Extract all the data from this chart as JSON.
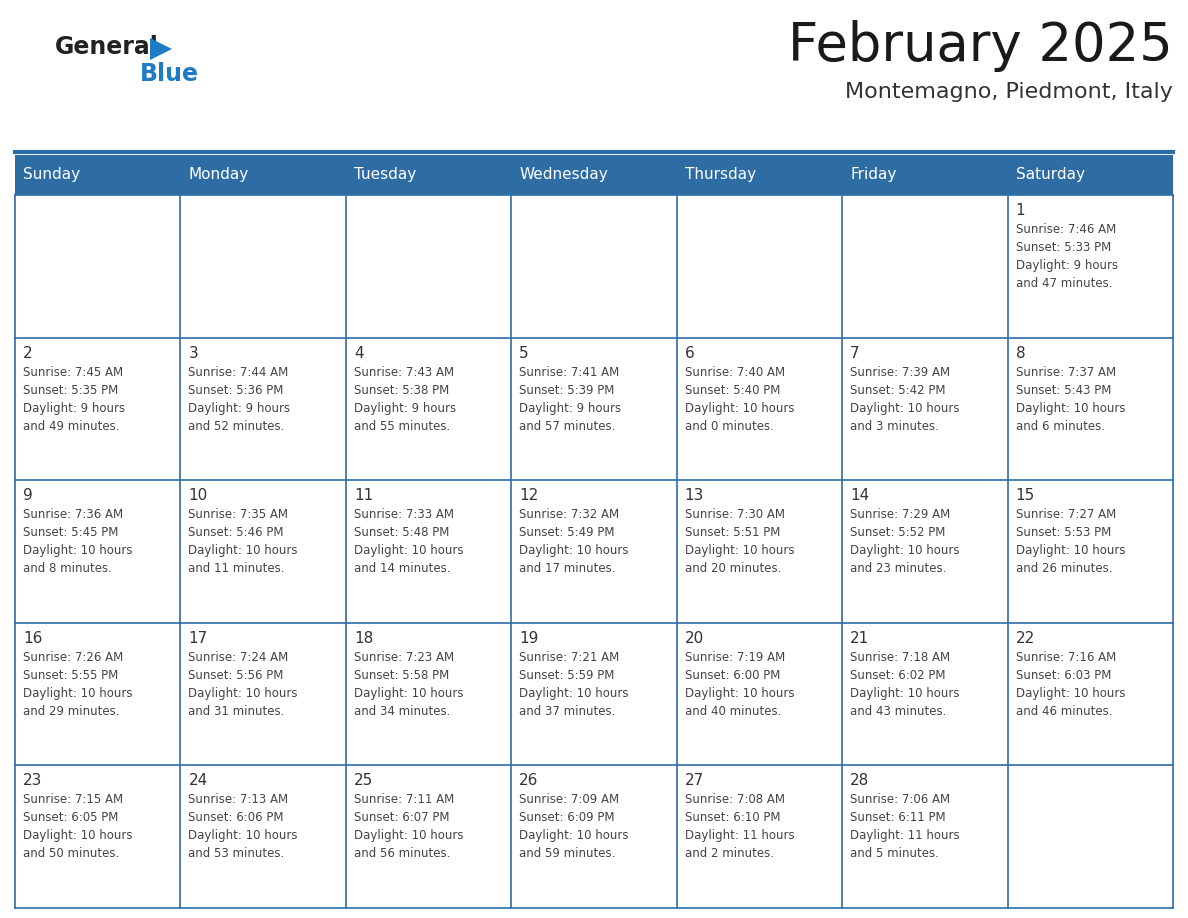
{
  "title": "February 2025",
  "subtitle": "Montemagno, Piedmont, Italy",
  "header_bg": "#2E6DA4",
  "header_text_color": "#FFFFFF",
  "cell_bg": "#FFFFFF",
  "first_row_bg": "#F2F2F2",
  "day_headers": [
    "Sunday",
    "Monday",
    "Tuesday",
    "Wednesday",
    "Thursday",
    "Friday",
    "Saturday"
  ],
  "logo_color1": "#222222",
  "logo_color2": "#1E7BC4",
  "logo_triangle_color": "#1E7BC4",
  "grid_line_color": "#2E6DA4",
  "date_color": "#333333",
  "text_color": "#444444",
  "calendar_data": {
    "1": {
      "sunrise": "7:46 AM",
      "sunset": "5:33 PM",
      "daylight_line1": "Daylight: 9 hours",
      "daylight_line2": "and 47 minutes."
    },
    "2": {
      "sunrise": "7:45 AM",
      "sunset": "5:35 PM",
      "daylight_line1": "Daylight: 9 hours",
      "daylight_line2": "and 49 minutes."
    },
    "3": {
      "sunrise": "7:44 AM",
      "sunset": "5:36 PM",
      "daylight_line1": "Daylight: 9 hours",
      "daylight_line2": "and 52 minutes."
    },
    "4": {
      "sunrise": "7:43 AM",
      "sunset": "5:38 PM",
      "daylight_line1": "Daylight: 9 hours",
      "daylight_line2": "and 55 minutes."
    },
    "5": {
      "sunrise": "7:41 AM",
      "sunset": "5:39 PM",
      "daylight_line1": "Daylight: 9 hours",
      "daylight_line2": "and 57 minutes."
    },
    "6": {
      "sunrise": "7:40 AM",
      "sunset": "5:40 PM",
      "daylight_line1": "Daylight: 10 hours",
      "daylight_line2": "and 0 minutes."
    },
    "7": {
      "sunrise": "7:39 AM",
      "sunset": "5:42 PM",
      "daylight_line1": "Daylight: 10 hours",
      "daylight_line2": "and 3 minutes."
    },
    "8": {
      "sunrise": "7:37 AM",
      "sunset": "5:43 PM",
      "daylight_line1": "Daylight: 10 hours",
      "daylight_line2": "and 6 minutes."
    },
    "9": {
      "sunrise": "7:36 AM",
      "sunset": "5:45 PM",
      "daylight_line1": "Daylight: 10 hours",
      "daylight_line2": "and 8 minutes."
    },
    "10": {
      "sunrise": "7:35 AM",
      "sunset": "5:46 PM",
      "daylight_line1": "Daylight: 10 hours",
      "daylight_line2": "and 11 minutes."
    },
    "11": {
      "sunrise": "7:33 AM",
      "sunset": "5:48 PM",
      "daylight_line1": "Daylight: 10 hours",
      "daylight_line2": "and 14 minutes."
    },
    "12": {
      "sunrise": "7:32 AM",
      "sunset": "5:49 PM",
      "daylight_line1": "Daylight: 10 hours",
      "daylight_line2": "and 17 minutes."
    },
    "13": {
      "sunrise": "7:30 AM",
      "sunset": "5:51 PM",
      "daylight_line1": "Daylight: 10 hours",
      "daylight_line2": "and 20 minutes."
    },
    "14": {
      "sunrise": "7:29 AM",
      "sunset": "5:52 PM",
      "daylight_line1": "Daylight: 10 hours",
      "daylight_line2": "and 23 minutes."
    },
    "15": {
      "sunrise": "7:27 AM",
      "sunset": "5:53 PM",
      "daylight_line1": "Daylight: 10 hours",
      "daylight_line2": "and 26 minutes."
    },
    "16": {
      "sunrise": "7:26 AM",
      "sunset": "5:55 PM",
      "daylight_line1": "Daylight: 10 hours",
      "daylight_line2": "and 29 minutes."
    },
    "17": {
      "sunrise": "7:24 AM",
      "sunset": "5:56 PM",
      "daylight_line1": "Daylight: 10 hours",
      "daylight_line2": "and 31 minutes."
    },
    "18": {
      "sunrise": "7:23 AM",
      "sunset": "5:58 PM",
      "daylight_line1": "Daylight: 10 hours",
      "daylight_line2": "and 34 minutes."
    },
    "19": {
      "sunrise": "7:21 AM",
      "sunset": "5:59 PM",
      "daylight_line1": "Daylight: 10 hours",
      "daylight_line2": "and 37 minutes."
    },
    "20": {
      "sunrise": "7:19 AM",
      "sunset": "6:00 PM",
      "daylight_line1": "Daylight: 10 hours",
      "daylight_line2": "and 40 minutes."
    },
    "21": {
      "sunrise": "7:18 AM",
      "sunset": "6:02 PM",
      "daylight_line1": "Daylight: 10 hours",
      "daylight_line2": "and 43 minutes."
    },
    "22": {
      "sunrise": "7:16 AM",
      "sunset": "6:03 PM",
      "daylight_line1": "Daylight: 10 hours",
      "daylight_line2": "and 46 minutes."
    },
    "23": {
      "sunrise": "7:15 AM",
      "sunset": "6:05 PM",
      "daylight_line1": "Daylight: 10 hours",
      "daylight_line2": "and 50 minutes."
    },
    "24": {
      "sunrise": "7:13 AM",
      "sunset": "6:06 PM",
      "daylight_line1": "Daylight: 10 hours",
      "daylight_line2": "and 53 minutes."
    },
    "25": {
      "sunrise": "7:11 AM",
      "sunset": "6:07 PM",
      "daylight_line1": "Daylight: 10 hours",
      "daylight_line2": "and 56 minutes."
    },
    "26": {
      "sunrise": "7:09 AM",
      "sunset": "6:09 PM",
      "daylight_line1": "Daylight: 10 hours",
      "daylight_line2": "and 59 minutes."
    },
    "27": {
      "sunrise": "7:08 AM",
      "sunset": "6:10 PM",
      "daylight_line1": "Daylight: 11 hours",
      "daylight_line2": "and 2 minutes."
    },
    "28": {
      "sunrise": "7:06 AM",
      "sunset": "6:11 PM",
      "daylight_line1": "Daylight: 11 hours",
      "daylight_line2": "and 5 minutes."
    }
  },
  "weeks": [
    [
      null,
      null,
      null,
      null,
      null,
      null,
      1
    ],
    [
      2,
      3,
      4,
      5,
      6,
      7,
      8
    ],
    [
      9,
      10,
      11,
      12,
      13,
      14,
      15
    ],
    [
      16,
      17,
      18,
      19,
      20,
      21,
      22
    ],
    [
      23,
      24,
      25,
      26,
      27,
      28,
      null
    ]
  ]
}
